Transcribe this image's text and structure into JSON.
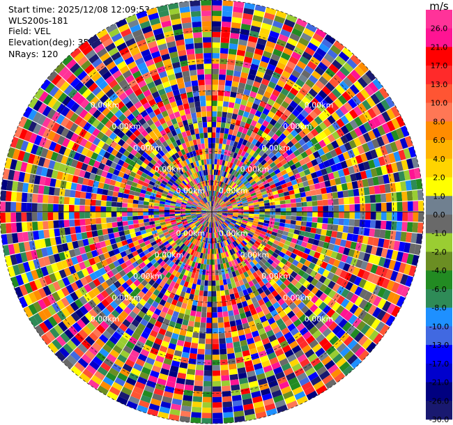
{
  "header": {
    "start_time": "Start time: 2025/12/08 12:09:53",
    "site": "WLS200s-181",
    "field": "Field: VEL",
    "elevation": "Elevation(deg): 35.00",
    "nrays": "NRays: 120"
  },
  "chart_data": {
    "type": "heatmap",
    "subtype": "radar-ppi",
    "field": "VEL",
    "elevation_deg": 35.0,
    "nrays": 120,
    "unit": "m/s",
    "range_rings_label": "0.00km",
    "range_ring_count": 7,
    "colorbar": {
      "unit": "m/s",
      "levels": [
        "26.0",
        "21.0",
        "17.0",
        "13.0",
        "10.0",
        "8.0",
        "6.0",
        "4.0",
        "2.0",
        "1.0",
        "0.0",
        "-1.0",
        "-2.0",
        "-4.0",
        "-6.0",
        "-8.0",
        "-10.0",
        "-13.0",
        "-17.0",
        "-21.0",
        "-26.0",
        "-30.0"
      ],
      "colors": [
        "#ff3399",
        "#ff1493",
        "#ff0000",
        "#ff2a2a",
        "#ff5533",
        "#ff7755",
        "#ff8c00",
        "#ffb300",
        "#ffd400",
        "#ffff00",
        "#708090",
        "#696969",
        "#9acd32",
        "#6b8e23",
        "#228b22",
        "#2e8b57",
        "#1e90ff",
        "#4169e1",
        "#0000ff",
        "#0000cd",
        "#000080",
        "#191970"
      ]
    }
  }
}
